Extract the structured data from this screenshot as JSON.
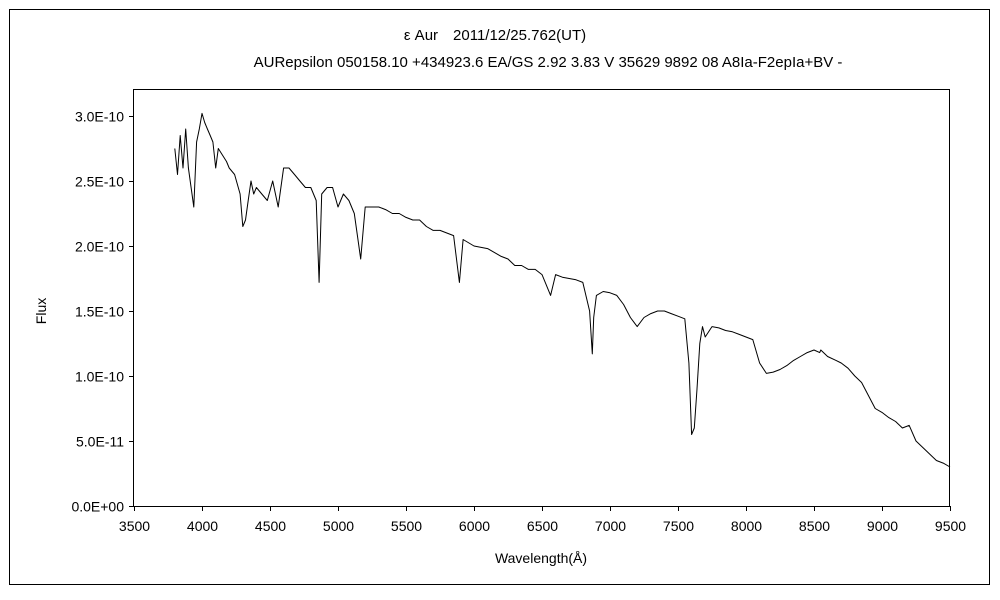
{
  "chart_data": {
    "type": "line",
    "title": "ε Aur　2011/12/25.762(UT)",
    "subtitle": "AURepsilon 050158.10 +434923.6 EA/GS 2.92 3.83 V 35629 9892 08 A8Ia-F2epIa+BV -",
    "xlabel": "Wavelength(Å)",
    "ylabel": "Flux",
    "xlim": [
      3500,
      9500
    ],
    "ylim": [
      0,
      3.2e-10
    ],
    "x_ticks": [
      3500,
      4000,
      4500,
      5000,
      5500,
      6000,
      6500,
      7000,
      7500,
      8000,
      8500,
      9000,
      9500
    ],
    "x_tick_labels": [
      "3500",
      "4000",
      "4500",
      "5000",
      "5500",
      "6000",
      "6500",
      "7000",
      "7500",
      "8000",
      "8500",
      "9000",
      "9500"
    ],
    "y_ticks": [
      0,
      5e-11,
      1e-10,
      1.5e-10,
      2e-10,
      2.5e-10,
      3e-10
    ],
    "y_tick_labels": [
      "0.0E+00",
      "5.0E-11",
      "1.0E-10",
      "1.5E-10",
      "2.0E-10",
      "2.5E-10",
      "3.0E-10"
    ],
    "grid": false,
    "legend": "none",
    "series": [
      {
        "color": "#000000",
        "x": [
          3800,
          3820,
          3840,
          3860,
          3880,
          3900,
          3920,
          3940,
          3960,
          3980,
          4000,
          4020,
          4040,
          4060,
          4080,
          4101,
          4120,
          4150,
          4180,
          4200,
          4240,
          4280,
          4300,
          4320,
          4340,
          4360,
          4380,
          4400,
          4440,
          4480,
          4520,
          4560,
          4600,
          4640,
          4680,
          4720,
          4760,
          4800,
          4840,
          4861,
          4880,
          4920,
          4960,
          5000,
          5040,
          5080,
          5120,
          5167,
          5200,
          5250,
          5300,
          5350,
          5400,
          5450,
          5500,
          5550,
          5600,
          5650,
          5700,
          5750,
          5800,
          5850,
          5893,
          5920,
          6000,
          6100,
          6200,
          6250,
          6300,
          6350,
          6400,
          6450,
          6500,
          6563,
          6600,
          6650,
          6700,
          6750,
          6800,
          6850,
          6870,
          6880,
          6900,
          6950,
          7000,
          7050,
          7100,
          7150,
          7200,
          7250,
          7300,
          7350,
          7400,
          7450,
          7500,
          7550,
          7580,
          7600,
          7620,
          7640,
          7660,
          7680,
          7700,
          7750,
          7800,
          7850,
          7900,
          7950,
          8000,
          8050,
          8100,
          8150,
          8200,
          8250,
          8300,
          8350,
          8400,
          8450,
          8500,
          8542,
          8550,
          8600,
          8662,
          8700,
          8750,
          8800,
          8850,
          8900,
          8950,
          9000,
          9050,
          9100,
          9150,
          9200,
          9250,
          9300,
          9350,
          9400,
          9450,
          9500
        ],
        "y": [
          2.75e-10,
          2.55e-10,
          2.85e-10,
          2.6e-10,
          2.9e-10,
          2.6e-10,
          2.45e-10,
          2.3e-10,
          2.8e-10,
          2.9e-10,
          3.02e-10,
          2.95e-10,
          2.9e-10,
          2.85e-10,
          2.8e-10,
          2.6e-10,
          2.75e-10,
          2.7e-10,
          2.65e-10,
          2.6e-10,
          2.55e-10,
          2.4e-10,
          2.15e-10,
          2.2e-10,
          2.35e-10,
          2.5e-10,
          2.4e-10,
          2.45e-10,
          2.4e-10,
          2.35e-10,
          2.5e-10,
          2.3e-10,
          2.6e-10,
          2.6e-10,
          2.55e-10,
          2.5e-10,
          2.45e-10,
          2.45e-10,
          2.35e-10,
          1.72e-10,
          2.4e-10,
          2.45e-10,
          2.45e-10,
          2.3e-10,
          2.4e-10,
          2.35e-10,
          2.25e-10,
          1.9e-10,
          2.3e-10,
          2.3e-10,
          2.3e-10,
          2.28e-10,
          2.25e-10,
          2.25e-10,
          2.22e-10,
          2.2e-10,
          2.2e-10,
          2.15e-10,
          2.12e-10,
          2.12e-10,
          2.1e-10,
          2.08e-10,
          1.72e-10,
          2.05e-10,
          2e-10,
          1.98e-10,
          1.92e-10,
          1.9e-10,
          1.85e-10,
          1.85e-10,
          1.82e-10,
          1.82e-10,
          1.78e-10,
          1.62e-10,
          1.78e-10,
          1.76e-10,
          1.75e-10,
          1.74e-10,
          1.72e-10,
          1.5e-10,
          1.17e-10,
          1.45e-10,
          1.62e-10,
          1.65e-10,
          1.64e-10,
          1.62e-10,
          1.55e-10,
          1.45e-10,
          1.38e-10,
          1.45e-10,
          1.48e-10,
          1.5e-10,
          1.5e-10,
          1.48e-10,
          1.46e-10,
          1.44e-10,
          1.1e-10,
          5.5e-11,
          6e-11,
          9e-11,
          1.25e-10,
          1.38e-10,
          1.3e-10,
          1.38e-10,
          1.37e-10,
          1.35e-10,
          1.34e-10,
          1.32e-10,
          1.3e-10,
          1.28e-10,
          1.1e-10,
          1.02e-10,
          1.03e-10,
          1.05e-10,
          1.08e-10,
          1.12e-10,
          1.15e-10,
          1.18e-10,
          1.2e-10,
          1.18e-10,
          1.2e-10,
          1.15e-10,
          1.12e-10,
          1.1e-10,
          1.06e-10,
          1e-10,
          9.5e-11,
          8.5e-11,
          7.5e-11,
          7.2e-11,
          6.8e-11,
          6.5e-11,
          6e-11,
          6.2e-11,
          5e-11,
          4.5e-11,
          4e-11,
          3.5e-11,
          3.3e-11,
          3e-11
        ]
      }
    ]
  }
}
